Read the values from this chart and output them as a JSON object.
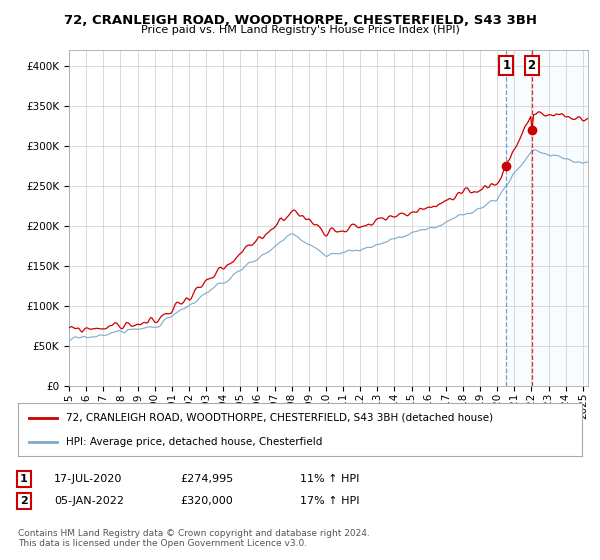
{
  "title1": "72, CRANLEIGH ROAD, WOODTHORPE, CHESTERFIELD, S43 3BH",
  "title2": "Price paid vs. HM Land Registry's House Price Index (HPI)",
  "legend1": "72, CRANLEIGH ROAD, WOODTHORPE, CHESTERFIELD, S43 3BH (detached house)",
  "legend2": "HPI: Average price, detached house, Chesterfield",
  "sale1_date": "17-JUL-2020",
  "sale1_price": "£274,995",
  "sale1_hpi": "11% ↑ HPI",
  "sale2_date": "05-JAN-2022",
  "sale2_price": "£320,000",
  "sale2_hpi": "17% ↑ HPI",
  "footer": "Contains HM Land Registry data © Crown copyright and database right 2024.\nThis data is licensed under the Open Government Licence v3.0.",
  "sale1_x": 2020.54,
  "sale1_y": 274995,
  "sale2_x": 2022.01,
  "sale2_y": 320000,
  "ylim": [
    0,
    420000
  ],
  "yticks": [
    0,
    50000,
    100000,
    150000,
    200000,
    250000,
    300000,
    350000,
    400000
  ],
  "xlim_start": 1995,
  "xlim_end": 2025.3,
  "line1_color": "#cc0000",
  "line2_color": "#7aaacc",
  "shade_color": "#ddeeff",
  "background_color": "#ffffff",
  "grid_color": "#cccccc"
}
